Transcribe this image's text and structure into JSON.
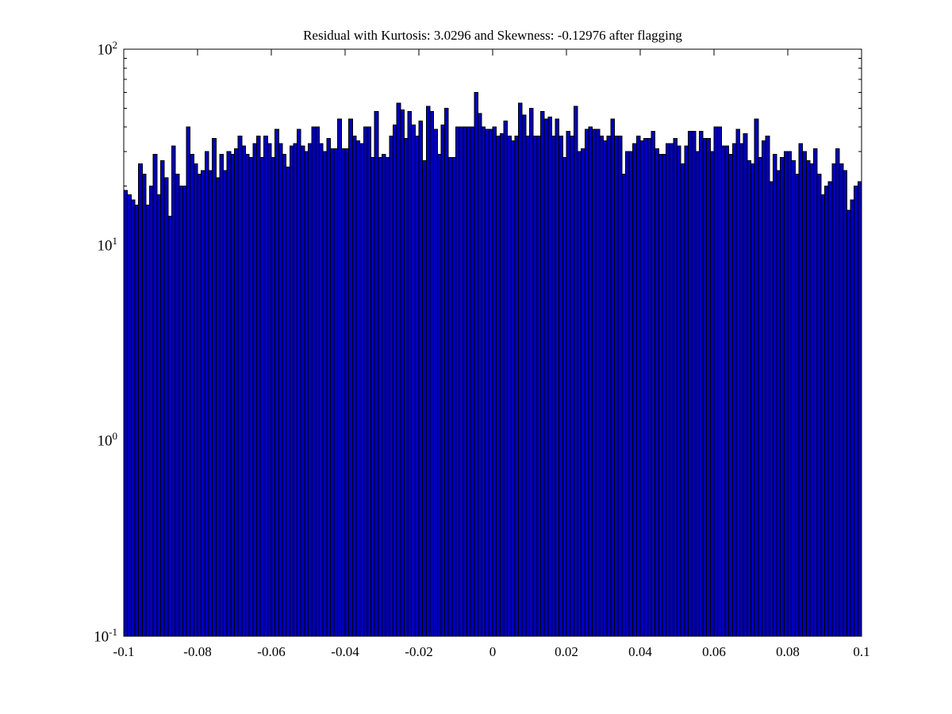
{
  "figure": {
    "background": "#ffffff"
  },
  "chart_data": {
    "type": "bar",
    "subtype": "histogram",
    "title": "Residual with Kurtosis: 3.0296 and Skewness: -0.12976 after flagging",
    "xlabel": "",
    "ylabel": "",
    "yscale": "log",
    "grid": false,
    "legend_position": "none",
    "xlim": [
      -0.1,
      0.1
    ],
    "ylim": [
      0.1,
      100
    ],
    "bin_start": -0.1,
    "bin_width": 0.001,
    "bar_color": "#0000b8",
    "bar_edge_color": "#000000",
    "axis_color": "#000000",
    "xticks": [
      {
        "value": -0.1,
        "label": "-0.1"
      },
      {
        "value": -0.08,
        "label": "-0.08"
      },
      {
        "value": -0.06,
        "label": "-0.06"
      },
      {
        "value": -0.04,
        "label": "-0.04"
      },
      {
        "value": -0.02,
        "label": "-0.02"
      },
      {
        "value": 0,
        "label": "0"
      },
      {
        "value": 0.02,
        "label": "0.02"
      },
      {
        "value": 0.04,
        "label": "0.04"
      },
      {
        "value": 0.06,
        "label": "0.06"
      },
      {
        "value": 0.08,
        "label": "0.08"
      },
      {
        "value": 0.1,
        "label": "0.1"
      }
    ],
    "yticks": [
      {
        "value": 100,
        "base": "10",
        "exp": "2"
      },
      {
        "value": 10,
        "base": "10",
        "exp": "1"
      },
      {
        "value": 1,
        "base": "10",
        "exp": "0"
      },
      {
        "value": 0.1,
        "base": "10",
        "exp": "-1"
      }
    ],
    "values": [
      19,
      18,
      17,
      16,
      26,
      23,
      16,
      20,
      29,
      18,
      27,
      22,
      14,
      32,
      23,
      20,
      20,
      40,
      29,
      26,
      23,
      24,
      30,
      24,
      35,
      22,
      29,
      24,
      30,
      29,
      31,
      36,
      32,
      29,
      28,
      33,
      36,
      28,
      36,
      33,
      28,
      39,
      33,
      29,
      25,
      32,
      33,
      39,
      32,
      30,
      33,
      40,
      40,
      33,
      30,
      35,
      31,
      31,
      44,
      31,
      31,
      44,
      36,
      34,
      33,
      40,
      40,
      28,
      48,
      28,
      29,
      28,
      36,
      41,
      53,
      49,
      35,
      48,
      41,
      36,
      43,
      27,
      51,
      48,
      39,
      29,
      41,
      50,
      28,
      28,
      40,
      40,
      40,
      40,
      40,
      60,
      47,
      40,
      39,
      39,
      40,
      36,
      37,
      43,
      36,
      34,
      36,
      53,
      46,
      36,
      50,
      36,
      36,
      48,
      44,
      45,
      36,
      44,
      36,
      28,
      38,
      36,
      51,
      30,
      31,
      39,
      40,
      39,
      39,
      36,
      34,
      36,
      44,
      36,
      36,
      23,
      30,
      30,
      33,
      36,
      34,
      35,
      35,
      38,
      31,
      29,
      29,
      33,
      33,
      35,
      32,
      26,
      32,
      38,
      38,
      30,
      38,
      35,
      35,
      30,
      40,
      40,
      32,
      32,
      29,
      33,
      39,
      33,
      37,
      27,
      26,
      44,
      28,
      34,
      36,
      21,
      29,
      24,
      28,
      30,
      30,
      27,
      23,
      33,
      30,
      27,
      26,
      31,
      23,
      18,
      20,
      21,
      26,
      31,
      26,
      24,
      15,
      17,
      20,
      21
    ]
  }
}
